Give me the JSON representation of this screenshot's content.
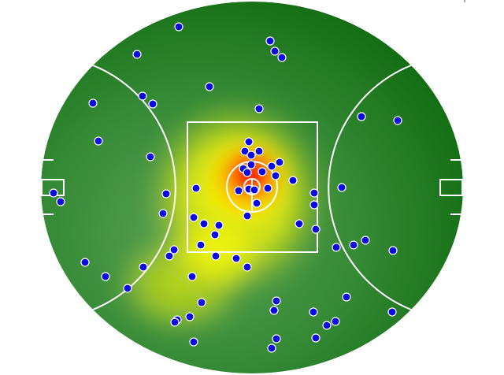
{
  "chart_data": {
    "type": "scatter",
    "title": "",
    "xlabel": "",
    "ylabel": "",
    "background": "heatmap",
    "grid": false,
    "legend": "none",
    "colors": {
      "point_fill": "#0a0ae0",
      "point_stroke": "#ffffff",
      "field_dark": "#0b6a0b",
      "field_light": "#4f9a4f",
      "heat_low": "#ffff00",
      "heat_mid": "#ff8800",
      "heat_high": "#ff0000",
      "lines": "#ffffff"
    },
    "points": [
      [
        -27.9,
        61.2
      ],
      [
        6.9,
        55.8
      ],
      [
        8.7,
        51.9
      ],
      [
        11.4,
        49.5
      ],
      [
        -43.8,
        50.7
      ],
      [
        -16.2,
        38.4
      ],
      [
        -41.7,
        34.8
      ],
      [
        -37.8,
        31.8
      ],
      [
        -60.6,
        32.1
      ],
      [
        2.7,
        30.0
      ],
      [
        41.7,
        27.0
      ],
      [
        55.5,
        25.5
      ],
      [
        -58.5,
        17.7
      ],
      [
        -1.2,
        17.4
      ],
      [
        -38.7,
        11.7
      ],
      [
        -2.7,
        13.8
      ],
      [
        2.7,
        13.8
      ],
      [
        -0.3,
        12.3
      ],
      [
        10.5,
        9.6
      ],
      [
        7.5,
        8.1
      ],
      [
        -3.3,
        7.2
      ],
      [
        -0.3,
        8.7
      ],
      [
        -1.8,
        5.7
      ],
      [
        3.9,
        6.0
      ],
      [
        9.0,
        4.5
      ],
      [
        15.6,
        2.7
      ],
      [
        -21.3,
        -0.3
      ],
      [
        -5.1,
        -1.2
      ],
      [
        -1.2,
        -0.6
      ],
      [
        0.9,
        -0.9
      ],
      [
        6.0,
        -0.3
      ],
      [
        23.7,
        -2.1
      ],
      [
        34.2,
        0.0
      ],
      [
        -75.6,
        -2.1
      ],
      [
        -72.9,
        -5.4
      ],
      [
        -32.7,
        -2.4
      ],
      [
        23.7,
        -6.6
      ],
      [
        1.8,
        -6.0
      ],
      [
        -33.9,
        -9.9
      ],
      [
        -1.8,
        -10.8
      ],
      [
        -22.2,
        -11.4
      ],
      [
        -18.3,
        -13.8
      ],
      [
        -12.6,
        -14.4
      ],
      [
        18.0,
        -13.8
      ],
      [
        24.3,
        -15.9
      ],
      [
        -14.1,
        -18.0
      ],
      [
        -19.5,
        -21.9
      ],
      [
        -29.7,
        -23.7
      ],
      [
        -31.5,
        -26.1
      ],
      [
        32.1,
        -22.8
      ],
      [
        38.7,
        -21.9
      ],
      [
        43.2,
        -20.1
      ],
      [
        53.7,
        -24.0
      ],
      [
        -13.8,
        -26.1
      ],
      [
        -6.0,
        -27.0
      ],
      [
        -1.8,
        -30.3
      ],
      [
        -41.4,
        -30.3
      ],
      [
        -63.6,
        -28.5
      ],
      [
        -55.8,
        -33.9
      ],
      [
        -22.8,
        -33.9
      ],
      [
        -47.4,
        -38.4
      ],
      [
        9.3,
        -43.2
      ],
      [
        -19.2,
        -43.8
      ],
      [
        36.0,
        -41.7
      ],
      [
        8.4,
        -46.8
      ],
      [
        23.4,
        -47.4
      ],
      [
        53.4,
        -47.4
      ],
      [
        -23.7,
        -49.2
      ],
      [
        -28.5,
        -50.4
      ],
      [
        -29.4,
        -51.3
      ],
      [
        31.8,
        -51.0
      ],
      [
        28.5,
        -52.5
      ],
      [
        9.3,
        -57.6
      ],
      [
        24.3,
        -57.3
      ],
      [
        -22.2,
        -58.8
      ],
      [
        7.5,
        -61.2
      ]
    ]
  }
}
